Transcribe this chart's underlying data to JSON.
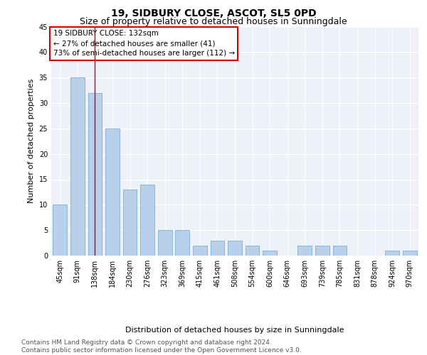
{
  "title": "19, SIDBURY CLOSE, ASCOT, SL5 0PD",
  "subtitle": "Size of property relative to detached houses in Sunningdale",
  "xlabel": "Distribution of detached houses by size in Sunningdale",
  "ylabel": "Number of detached properties",
  "categories": [
    "45sqm",
    "91sqm",
    "138sqm",
    "184sqm",
    "230sqm",
    "276sqm",
    "323sqm",
    "369sqm",
    "415sqm",
    "461sqm",
    "508sqm",
    "554sqm",
    "600sqm",
    "646sqm",
    "693sqm",
    "739sqm",
    "785sqm",
    "831sqm",
    "878sqm",
    "924sqm",
    "970sqm"
  ],
  "values": [
    10,
    35,
    32,
    25,
    13,
    14,
    5,
    5,
    2,
    3,
    3,
    2,
    1,
    0,
    2,
    2,
    2,
    0,
    0,
    1,
    1
  ],
  "bar_color": "#b8d0ea",
  "bar_edgecolor": "#7aadd4",
  "vline_x": 2,
  "vline_color": "#cc0000",
  "annotation_lines": [
    "19 SIDBURY CLOSE: 132sqm",
    "← 27% of detached houses are smaller (41)",
    "73% of semi-detached houses are larger (112) →"
  ],
  "annotation_box_color": "#ffffff",
  "annotation_box_edgecolor": "#cc0000",
  "ylim": [
    0,
    45
  ],
  "yticks": [
    0,
    5,
    10,
    15,
    20,
    25,
    30,
    35,
    40,
    45
  ],
  "footer_line1": "Contains HM Land Registry data © Crown copyright and database right 2024.",
  "footer_line2": "Contains public sector information licensed under the Open Government Licence v3.0.",
  "bg_color": "#eef2f8",
  "title_fontsize": 10,
  "subtitle_fontsize": 9,
  "axis_label_fontsize": 8,
  "tick_fontsize": 7,
  "annotation_fontsize": 7.5,
  "footer_fontsize": 6.5
}
